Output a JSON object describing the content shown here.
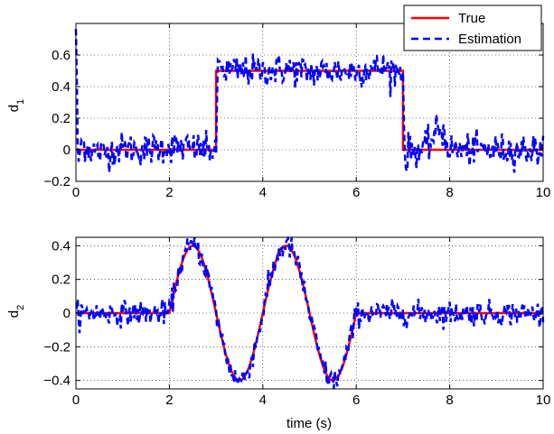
{
  "chart_data": [
    {
      "type": "line",
      "ylabel": "d",
      "ylabel_sub": "1",
      "xlim": [
        0,
        10
      ],
      "ylim": [
        -0.2,
        0.8
      ],
      "xticks": [
        0,
        2,
        4,
        6,
        8,
        10
      ],
      "yticks": [
        -0.2,
        0,
        0.2,
        0.4,
        0.6
      ],
      "ytick_labels": [
        "−0.2",
        "0",
        "0.2",
        "0.4",
        "0.6"
      ],
      "grid": true,
      "series": [
        {
          "name": "True",
          "color": "#ff0000",
          "style": "solid",
          "x": [
            0,
            3.0,
            3.0,
            7.0,
            7.0,
            10
          ],
          "y": [
            0,
            0,
            0.5,
            0.5,
            0,
            0
          ]
        },
        {
          "name": "Estimation",
          "color": "#0000ff",
          "style": "dashed",
          "noise_sigma": 0.05,
          "x": [
            0,
            0.05,
            0.1,
            0.3,
            0.6,
            1.0,
            1.5,
            2.0,
            2.5,
            2.8,
            3.0,
            3.05,
            3.1,
            3.2,
            3.5,
            4.0,
            4.5,
            5.0,
            5.5,
            6.0,
            6.5,
            6.9,
            7.0,
            7.05,
            7.1,
            7.3,
            7.5,
            7.8,
            8.0,
            8.5,
            9.0,
            9.5,
            10
          ],
          "y": [
            0.78,
            -0.18,
            0.05,
            0.0,
            -0.02,
            0.01,
            0.0,
            0.02,
            0.01,
            0.0,
            0.0,
            0.6,
            0.52,
            0.5,
            0.5,
            0.5,
            0.51,
            0.49,
            0.5,
            0.5,
            0.52,
            0.5,
            0.5,
            -0.18,
            0.0,
            0.0,
            0.01,
            0.15,
            0.0,
            0.0,
            0.0,
            0.0,
            0.0
          ]
        }
      ],
      "legend": {
        "entries": [
          "True",
          "Estimation"
        ],
        "placement": "top-right"
      }
    },
    {
      "type": "line",
      "xlabel": "time (s)",
      "ylabel": "d",
      "ylabel_sub": "2",
      "xlim": [
        0,
        10
      ],
      "ylim": [
        -0.45,
        0.45
      ],
      "xticks": [
        0,
        2,
        4,
        6,
        8,
        10
      ],
      "yticks": [
        -0.4,
        -0.2,
        0,
        0.2,
        0.4
      ],
      "ytick_labels": [
        "−0.4",
        "−0.2",
        "0",
        "0.2",
        "0.4"
      ],
      "grid": true,
      "series": [
        {
          "name": "True",
          "color": "#ff0000",
          "style": "solid",
          "formula": "0.4*sin(pi*(t-2)) for 2<=t<=6 else 0"
        },
        {
          "name": "Estimation",
          "color": "#0000ff",
          "style": "dashed",
          "noise_sigma": 0.035,
          "formula": "0.4*sin(pi*(t-2)) for 2<=t<=6 else 0"
        }
      ]
    }
  ]
}
